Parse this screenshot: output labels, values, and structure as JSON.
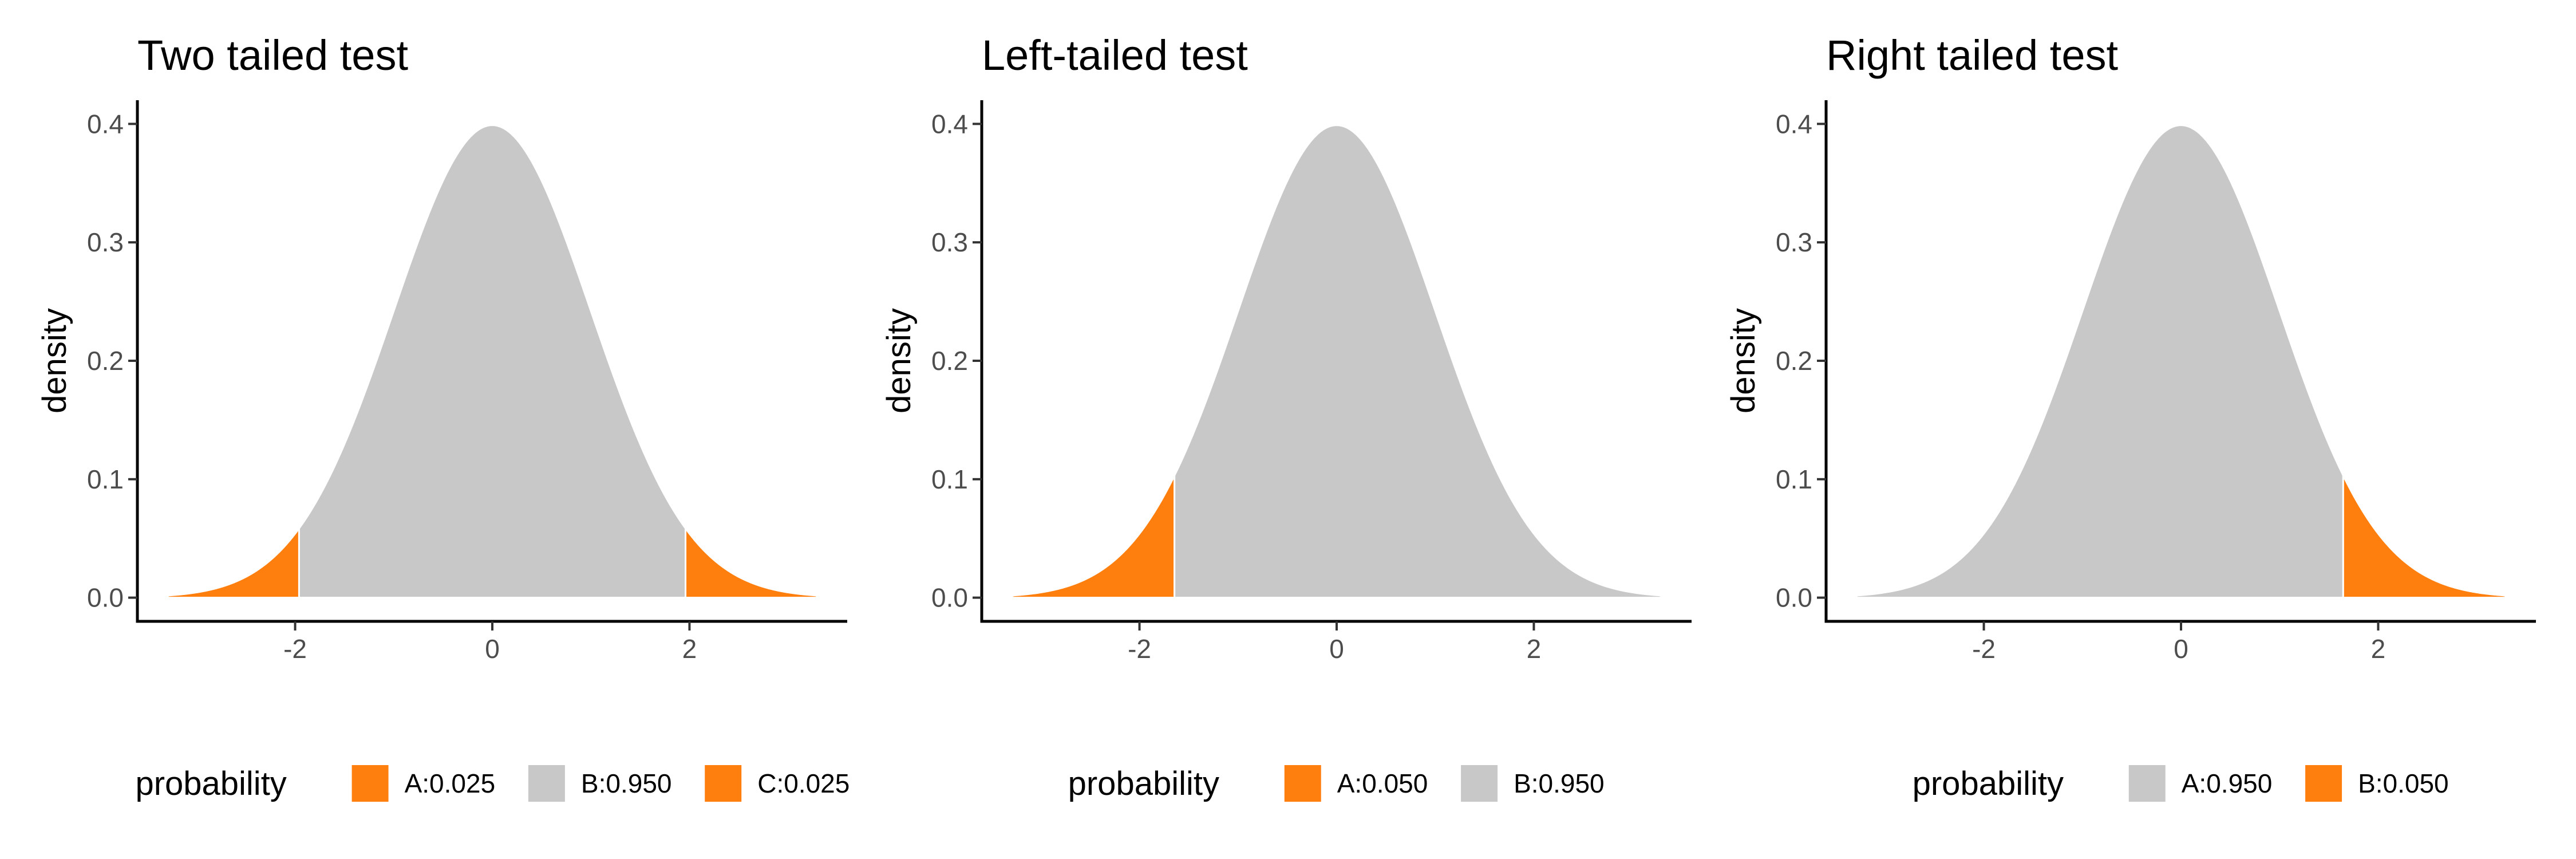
{
  "chart_data": [
    {
      "type": "area",
      "title": "Two tailed test",
      "xlabel": "",
      "ylabel": "density",
      "x_range": [
        -3.29,
        3.29
      ],
      "xlim": [
        -3.6,
        3.6
      ],
      "ylim": [
        -0.02,
        0.42
      ],
      "x_ticks": [
        -2,
        0,
        2
      ],
      "x_tick_labels": [
        "-2",
        "0",
        "2"
      ],
      "y_ticks": [
        0.0,
        0.1,
        0.2,
        0.3,
        0.4
      ],
      "y_tick_labels": [
        "0.0",
        "0.1",
        "0.2",
        "0.3",
        "0.4"
      ],
      "grid": false,
      "legend_position": "bottom",
      "legend_title": "probability",
      "regions": [
        {
          "label": "A:0.025",
          "from": -3.29,
          "to": -1.96,
          "color": "#FF7F0E"
        },
        {
          "label": "B:0.950",
          "from": -1.96,
          "to": 1.96,
          "color": "#C8C8C8"
        },
        {
          "label": "C:0.025",
          "from": 1.96,
          "to": 3.29,
          "color": "#FF7F0E"
        }
      ]
    },
    {
      "type": "area",
      "title": "Left-tailed test",
      "xlabel": "",
      "ylabel": "density",
      "x_range": [
        -3.29,
        3.29
      ],
      "xlim": [
        -3.6,
        3.6
      ],
      "ylim": [
        -0.02,
        0.42
      ],
      "x_ticks": [
        -2,
        0,
        2
      ],
      "x_tick_labels": [
        "-2",
        "0",
        "2"
      ],
      "y_ticks": [
        0.0,
        0.1,
        0.2,
        0.3,
        0.4
      ],
      "y_tick_labels": [
        "0.0",
        "0.1",
        "0.2",
        "0.3",
        "0.4"
      ],
      "grid": false,
      "legend_position": "bottom",
      "legend_title": "probability",
      "regions": [
        {
          "label": "A:0.050",
          "from": -3.29,
          "to": -1.645,
          "color": "#FF7F0E"
        },
        {
          "label": "B:0.950",
          "from": -1.645,
          "to": 3.29,
          "color": "#C8C8C8"
        }
      ]
    },
    {
      "type": "area",
      "title": "Right tailed test",
      "xlabel": "",
      "ylabel": "density",
      "x_range": [
        -3.29,
        3.29
      ],
      "xlim": [
        -3.6,
        3.6
      ],
      "ylim": [
        -0.02,
        0.42
      ],
      "x_ticks": [
        -2,
        0,
        2
      ],
      "x_tick_labels": [
        "-2",
        "0",
        "2"
      ],
      "y_ticks": [
        0.0,
        0.1,
        0.2,
        0.3,
        0.4
      ],
      "y_tick_labels": [
        "0.0",
        "0.1",
        "0.2",
        "0.3",
        "0.4"
      ],
      "grid": false,
      "legend_position": "bottom",
      "legend_title": "probability",
      "regions": [
        {
          "label": "A:0.950",
          "from": -3.29,
          "to": 1.645,
          "color": "#C8C8C8"
        },
        {
          "label": "B:0.050",
          "from": 1.645,
          "to": 3.29,
          "color": "#FF7F0E"
        }
      ]
    }
  ]
}
